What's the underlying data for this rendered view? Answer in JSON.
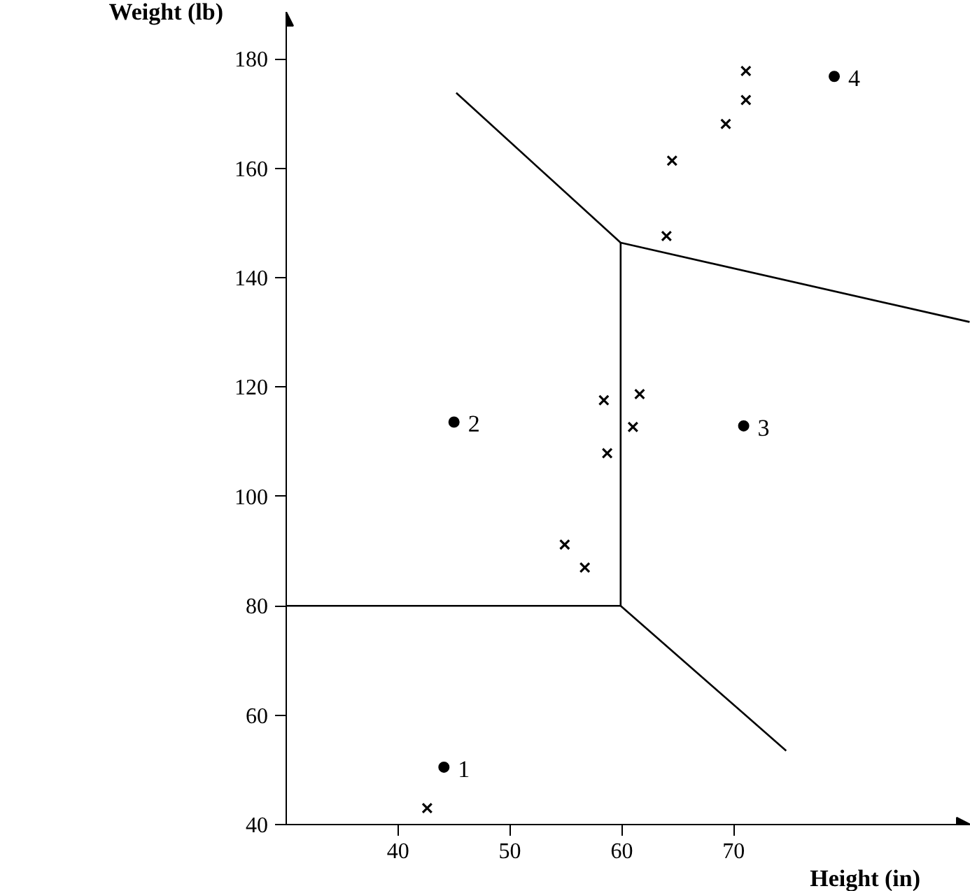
{
  "chart_data": {
    "type": "scatter",
    "xlabel": "Height (in)",
    "ylabel": "Weight (lb)",
    "xlim": [
      30,
      91.2
    ],
    "ylim": [
      40,
      188.6
    ],
    "xticks": [
      40,
      50,
      60,
      70
    ],
    "yticks": [
      40,
      60,
      80,
      100,
      120,
      140,
      160,
      180
    ],
    "grid": false,
    "series": [
      {
        "marker": "circle",
        "color": "#000000",
        "x": [
          44.1,
          45.0,
          70.9,
          79.0
        ],
        "values": [
          50.5,
          113.6,
          112.9,
          176.8
        ]
      },
      {
        "marker": "cross",
        "color": "#000000",
        "x": [
          71.1,
          71.1,
          69.3,
          64.5,
          64.0,
          58.4,
          61.6,
          61.0,
          58.7,
          54.9,
          56.7,
          42.6
        ],
        "values": [
          177.8,
          172.5,
          168.1,
          161.4,
          147.6,
          117.6,
          118.7,
          112.7,
          107.9,
          91.2,
          87.0,
          43.0
        ]
      },
      {
        "type": "line",
        "marker": "none",
        "color": "#000000",
        "x": [
          45.2,
          59.9,
          91.1
        ],
        "values": [
          173.8,
          146.4,
          131.9
        ]
      },
      {
        "type": "line",
        "marker": "none",
        "color": "#000000",
        "x": [
          59.9,
          59.9
        ],
        "values": [
          146.4,
          80.0
        ]
      },
      {
        "type": "line",
        "marker": "none",
        "color": "#000000",
        "x": [
          30,
          59.9,
          74.7
        ],
        "values": [
          80.0,
          80.0,
          53.5
        ]
      }
    ],
    "annotations": [
      {
        "text": "1",
        "x": 44.1,
        "y": 50.5
      },
      {
        "text": "2",
        "x": 45.0,
        "y": 113.6
      },
      {
        "text": "3",
        "x": 70.9,
        "y": 112.9
      },
      {
        "text": "4",
        "x": 79.0,
        "y": 176.8
      }
    ]
  }
}
